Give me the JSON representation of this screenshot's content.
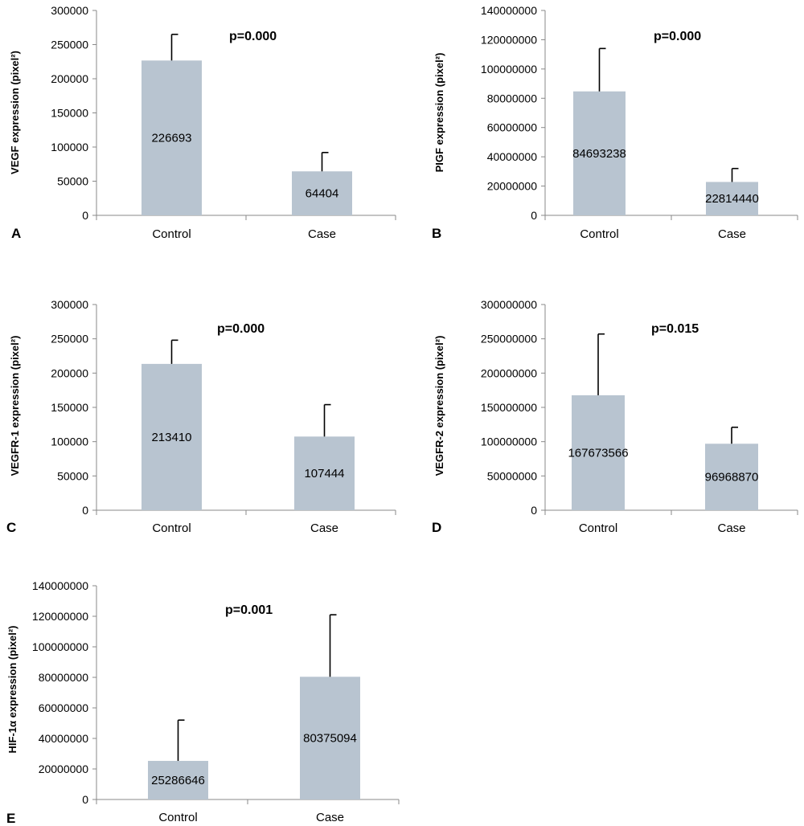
{
  "chart_data": [
    {
      "type": "bar",
      "panel": "A",
      "ylabel": "VEGF expression (pixel²)",
      "pvalue": "p=0.000",
      "categories": [
        "Control",
        "Case"
      ],
      "values": [
        226693,
        64404
      ],
      "value_labels": [
        "226693",
        "64404"
      ],
      "error_upper": [
        265000,
        92000
      ],
      "ylim": [
        0,
        300000
      ],
      "yticks": [
        0,
        50000,
        100000,
        150000,
        200000,
        250000,
        300000
      ],
      "ytick_labels": [
        "0",
        "50000",
        "100000",
        "150000",
        "200000",
        "250000",
        "300000"
      ],
      "bar_color": "#b8c4d0"
    },
    {
      "type": "bar",
      "panel": "B",
      "ylabel": "PIGF expression (pixel²)",
      "pvalue": "p=0.000",
      "categories": [
        "Control",
        "Case"
      ],
      "values": [
        84693238,
        22814440
      ],
      "value_labels": [
        "84693238",
        "22814440"
      ],
      "error_upper": [
        114000000,
        32000000
      ],
      "ylim": [
        0,
        140000000
      ],
      "yticks": [
        0,
        20000000,
        40000000,
        60000000,
        80000000,
        100000000,
        120000000,
        140000000
      ],
      "ytick_labels": [
        "0",
        "20000000",
        "40000000",
        "60000000",
        "80000000",
        "100000000",
        "120000000",
        "140000000"
      ],
      "bar_color": "#b8c4d0"
    },
    {
      "type": "bar",
      "panel": "C",
      "ylabel": "VEGFR-1 expression (pixel²)",
      "pvalue": "p=0.000",
      "categories": [
        "Control",
        "Case"
      ],
      "values": [
        213410,
        107444
      ],
      "value_labels": [
        "213410",
        "107444"
      ],
      "error_upper": [
        248000,
        154000
      ],
      "ylim": [
        0,
        300000
      ],
      "yticks": [
        0,
        50000,
        100000,
        150000,
        200000,
        250000,
        300000
      ],
      "ytick_labels": [
        "0",
        "50000",
        "100000",
        "150000",
        "200000",
        "250000",
        "300000"
      ],
      "bar_color": "#b8c4d0"
    },
    {
      "type": "bar",
      "panel": "D",
      "ylabel": "VEGFR-2  expression (pixel²)",
      "pvalue": "p=0.015",
      "categories": [
        "Control",
        "Case"
      ],
      "values": [
        167673566,
        96968870
      ],
      "value_labels": [
        "167673566",
        "96968870"
      ],
      "error_upper": [
        257000000,
        121000000
      ],
      "ylim": [
        0,
        300000000
      ],
      "yticks": [
        0,
        50000000,
        100000000,
        150000000,
        200000000,
        250000000,
        300000000
      ],
      "ytick_labels": [
        "0",
        "50000000",
        "100000000",
        "150000000",
        "200000000",
        "250000000",
        "300000000"
      ],
      "bar_color": "#b8c4d0"
    },
    {
      "type": "bar",
      "panel": "E",
      "ylabel": "HIF-1α expression  (pixel²)",
      "pvalue": "p=0.001",
      "categories": [
        "Control",
        "Case"
      ],
      "values": [
        25286646,
        80375094
      ],
      "value_labels": [
        "25286646",
        "80375094"
      ],
      "error_upper": [
        52000000,
        121000000
      ],
      "ylim": [
        0,
        140000000
      ],
      "yticks": [
        0,
        20000000,
        40000000,
        60000000,
        80000000,
        100000000,
        120000000,
        140000000
      ],
      "ytick_labels": [
        "0",
        "20000000",
        "40000000",
        "60000000",
        "80000000",
        "100000000",
        "120000000",
        "140000000"
      ],
      "bar_color": "#b8c4d0"
    }
  ]
}
